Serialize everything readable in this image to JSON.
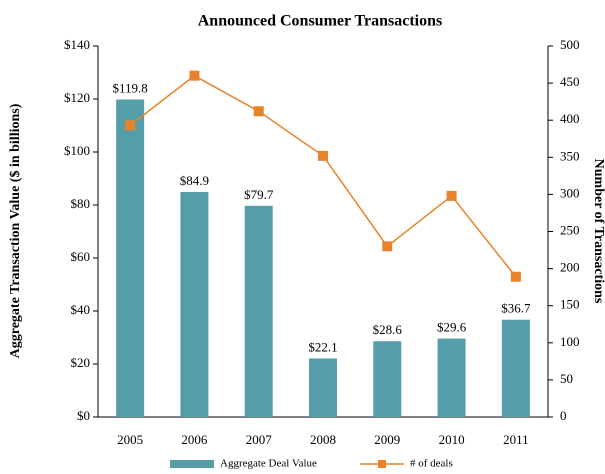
{
  "chart_data": {
    "type": "bar",
    "title": "Announced Consumer Transactions",
    "y_label": "Aggregate Transaction Value ($ in billions)",
    "y2_label": "Number of Transactions",
    "categories": [
      "2005",
      "2006",
      "2007",
      "2008",
      "2009",
      "2010",
      "2011"
    ],
    "series": [
      {
        "name": "Aggregate Deal Value",
        "type": "bar",
        "color": "#559ea9",
        "values": [
          119.8,
          84.9,
          79.7,
          22.1,
          28.6,
          29.6,
          36.7
        ],
        "value_labels": [
          "$119.8",
          "$84.9",
          "$79.7",
          "$22.1",
          "$28.6",
          "$29.6",
          "$36.7"
        ]
      },
      {
        "name": "# of deals",
        "type": "line",
        "axis": "y2",
        "color": "#e8832a",
        "values": [
          393,
          460,
          412,
          352,
          230,
          298,
          189
        ]
      }
    ],
    "ylim": [
      0,
      140
    ],
    "yticks": [
      {
        "value": 0,
        "label": "$0"
      },
      {
        "value": 20,
        "label": "$20"
      },
      {
        "value": 40,
        "label": "$40"
      },
      {
        "value": 60,
        "label": "$60"
      },
      {
        "value": 80,
        "label": "$80"
      },
      {
        "value": 100,
        "label": "$100"
      },
      {
        "value": 120,
        "label": "$120"
      },
      {
        "value": 140,
        "label": "$140"
      }
    ],
    "y2lim": [
      0,
      500
    ],
    "y2ticks": [
      0,
      50,
      100,
      150,
      200,
      250,
      300,
      350,
      400,
      450,
      500
    ],
    "legend": "bottom"
  }
}
